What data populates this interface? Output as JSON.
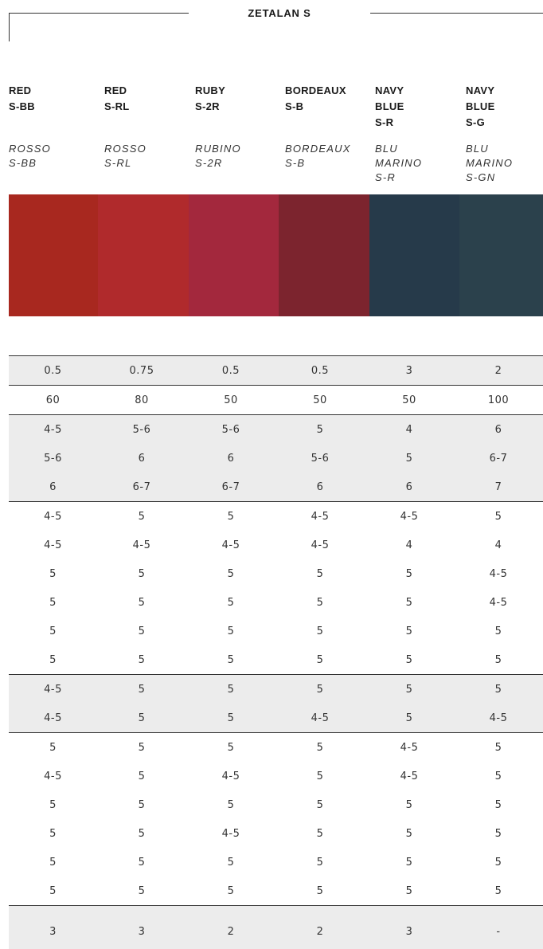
{
  "title": "ZETALAN S",
  "columns": [
    {
      "en": [
        "RED",
        "S-BB"
      ],
      "it": [
        "ROSSO",
        "S-BB"
      ],
      "color": "#a8281f"
    },
    {
      "en": [
        "RED",
        "S-RL"
      ],
      "it": [
        "ROSSO",
        "S-RL"
      ],
      "color": "#b02a2c"
    },
    {
      "en": [
        "RUBY",
        "S-2R"
      ],
      "it": [
        "RUBINO",
        "S-2R"
      ],
      "color": "#a3283d"
    },
    {
      "en": [
        "BORDEAUX",
        "S-B"
      ],
      "it": [
        "BORDEAUX",
        "S-B"
      ],
      "color": "#7c242e"
    },
    {
      "en": [
        "NAVY",
        "BLUE",
        "S-R"
      ],
      "it": [
        "BLU",
        "MARINO",
        "S-R"
      ],
      "color": "#263a4a"
    },
    {
      "en": [
        "NAVY",
        "BLUE",
        "S-G"
      ],
      "it": [
        "BLU",
        "MARINO",
        "S-GN"
      ],
      "color": "#2b414c"
    }
  ],
  "groups": [
    {
      "shade": true,
      "rows": [
        [
          "0.5",
          "0.75",
          "0.5",
          "0.5",
          "3",
          "2"
        ]
      ]
    },
    {
      "shade": false,
      "rows": [
        [
          "60",
          "80",
          "50",
          "50",
          "50",
          "100"
        ]
      ]
    },
    {
      "shade": true,
      "rows": [
        [
          "4-5",
          "5-6",
          "5-6",
          "5",
          "4",
          "6"
        ],
        [
          "5-6",
          "6",
          "6",
          "5-6",
          "5",
          "6-7"
        ],
        [
          "6",
          "6-7",
          "6-7",
          "6",
          "6",
          "7"
        ]
      ]
    },
    {
      "shade": false,
      "rows": [
        [
          "4-5",
          "5",
          "5",
          "4-5",
          "4-5",
          "5"
        ],
        [
          "4-5",
          "4-5",
          "4-5",
          "4-5",
          "4",
          "4"
        ],
        [
          "5",
          "5",
          "5",
          "5",
          "5",
          "4-5"
        ],
        [
          "5",
          "5",
          "5",
          "5",
          "5",
          "4-5"
        ],
        [
          "5",
          "5",
          "5",
          "5",
          "5",
          "5"
        ],
        [
          "5",
          "5",
          "5",
          "5",
          "5",
          "5"
        ]
      ]
    },
    {
      "shade": true,
      "rows": [
        [
          "4-5",
          "5",
          "5",
          "5",
          "5",
          "5"
        ],
        [
          "4-5",
          "5",
          "5",
          "4-5",
          "5",
          "4-5"
        ]
      ]
    },
    {
      "shade": false,
      "rows": [
        [
          "5",
          "5",
          "5",
          "5",
          "4-5",
          "5"
        ],
        [
          "4-5",
          "5",
          "4-5",
          "5",
          "4-5",
          "5"
        ],
        [
          "5",
          "5",
          "5",
          "5",
          "5",
          "5"
        ],
        [
          "5",
          "5",
          "4-5",
          "5",
          "5",
          "5"
        ],
        [
          "5",
          "5",
          "5",
          "5",
          "5",
          "5"
        ],
        [
          "5",
          "5",
          "5",
          "5",
          "5",
          "5"
        ]
      ]
    },
    {
      "shade": true,
      "final": true,
      "rows": [
        [
          "3",
          "3",
          "2",
          "2",
          "3",
          "-"
        ]
      ]
    }
  ]
}
